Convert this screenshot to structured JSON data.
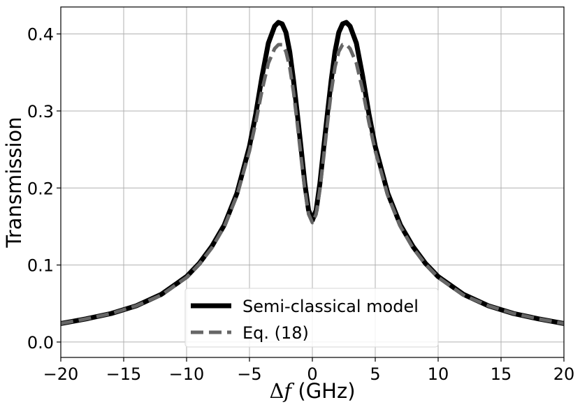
{
  "chart_data": {
    "type": "line",
    "xlabel_symbol": "Δ",
    "xlabel_var": "f",
    "xlabel_unit": " (GHz)",
    "ylabel": "Transmission",
    "xlim": [
      -20,
      20
    ],
    "ylim": [
      -0.02,
      0.435
    ],
    "grid": true,
    "legend_position": "bottom-center",
    "xticks": [
      -20,
      -15,
      -10,
      -5,
      0,
      5,
      10,
      15,
      20
    ],
    "xtick_labels": [
      "−20",
      "−15",
      "−10",
      "−5",
      "0",
      "5",
      "10",
      "15",
      "20"
    ],
    "yticks": [
      0.0,
      0.1,
      0.2,
      0.3,
      0.4
    ],
    "ytick_labels": [
      "0.0",
      "0.1",
      "0.2",
      "0.3",
      "0.4"
    ],
    "series": [
      {
        "name": "Semi-classical model",
        "style": "solid",
        "color": "#000000",
        "x": [
          -20,
          -18,
          -16,
          -14,
          -12,
          -10,
          -9,
          -8,
          -7,
          -6,
          -5,
          -4.5,
          -4,
          -3.5,
          -3,
          -2.7,
          -2.4,
          -2.1,
          -1.8,
          -1.5,
          -1.2,
          -0.9,
          -0.6,
          -0.3,
          0,
          0.3,
          0.6,
          0.9,
          1.2,
          1.5,
          1.8,
          2.1,
          2.4,
          2.7,
          3,
          3.5,
          4,
          4.5,
          5,
          6,
          7,
          8,
          9,
          10,
          12,
          14,
          16,
          18,
          20
        ],
        "y": [
          0.024,
          0.03,
          0.037,
          0.047,
          0.062,
          0.085,
          0.102,
          0.124,
          0.152,
          0.193,
          0.254,
          0.296,
          0.345,
          0.388,
          0.41,
          0.415,
          0.413,
          0.402,
          0.377,
          0.34,
          0.297,
          0.252,
          0.206,
          0.171,
          0.158,
          0.171,
          0.206,
          0.252,
          0.297,
          0.34,
          0.377,
          0.402,
          0.413,
          0.415,
          0.41,
          0.388,
          0.345,
          0.296,
          0.254,
          0.193,
          0.152,
          0.124,
          0.102,
          0.085,
          0.062,
          0.047,
          0.037,
          0.03,
          0.024
        ]
      },
      {
        "name": "Eq. (18)",
        "style": "dashed",
        "color": "#666666",
        "x": [
          -20,
          -18,
          -16,
          -14,
          -12,
          -10,
          -9,
          -8,
          -7,
          -6,
          -5,
          -4.5,
          -4,
          -3.5,
          -3,
          -2.7,
          -2.4,
          -2.1,
          -1.8,
          -1.5,
          -1.2,
          -0.9,
          -0.6,
          -0.3,
          0,
          0.3,
          0.6,
          0.9,
          1.2,
          1.5,
          1.8,
          2.1,
          2.4,
          2.7,
          3,
          3.5,
          4,
          4.5,
          5,
          6,
          7,
          8,
          9,
          10,
          12,
          14,
          16,
          18,
          20
        ],
        "y": [
          0.024,
          0.03,
          0.037,
          0.047,
          0.061,
          0.084,
          0.101,
          0.122,
          0.15,
          0.19,
          0.248,
          0.285,
          0.327,
          0.362,
          0.381,
          0.386,
          0.386,
          0.377,
          0.357,
          0.325,
          0.284,
          0.24,
          0.198,
          0.166,
          0.155,
          0.166,
          0.198,
          0.24,
          0.284,
          0.325,
          0.357,
          0.377,
          0.386,
          0.386,
          0.381,
          0.362,
          0.327,
          0.285,
          0.248,
          0.19,
          0.15,
          0.122,
          0.101,
          0.084,
          0.061,
          0.047,
          0.037,
          0.03,
          0.024
        ]
      }
    ]
  }
}
